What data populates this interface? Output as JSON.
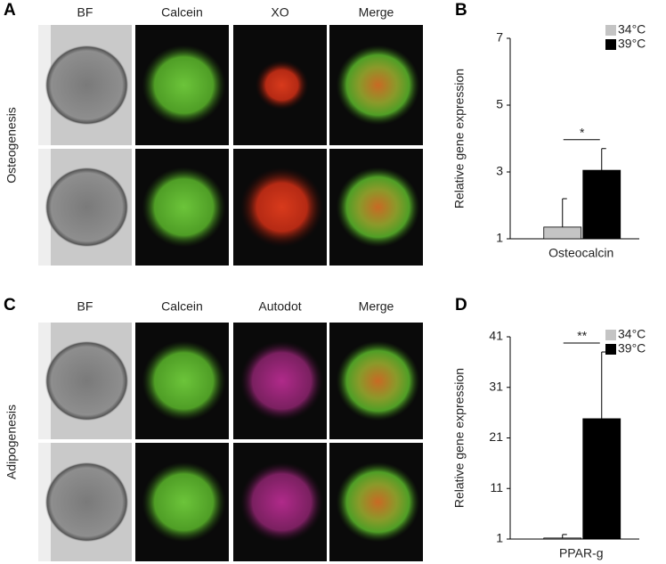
{
  "panels": [
    {
      "label": "A",
      "columns": [
        "BF",
        "Calcein",
        "XO",
        "Merge"
      ],
      "row_label": "Osteogenesis"
    },
    {
      "label": "C",
      "columns": [
        "BF",
        "Calcein",
        "Autodot",
        "Merge"
      ],
      "row_label": "Adipogenesis"
    }
  ],
  "chart_data": [
    {
      "type": "bar",
      "panel_label": "B",
      "y_label": "Relative gene expression",
      "categories": [
        "Osteocalcin"
      ],
      "significance": "*",
      "series": [
        {
          "name": "34°C",
          "color": "#c4c4c4",
          "values": [
            1.35
          ],
          "errors": [
            0.85
          ]
        },
        {
          "name": "39°C",
          "color": "#000000",
          "values": [
            3.05
          ],
          "errors": [
            0.65
          ]
        }
      ],
      "ylim": [
        1,
        7
      ],
      "yticks": [
        1,
        3,
        5,
        7
      ]
    },
    {
      "type": "bar",
      "panel_label": "D",
      "y_label": "Relative gene expression",
      "categories": [
        "PPAR-g"
      ],
      "significance": "**",
      "series": [
        {
          "name": "34°C",
          "color": "#c4c4c4",
          "values": [
            1.2
          ],
          "errors": [
            0.7
          ]
        },
        {
          "name": "39°C",
          "color": "#000000",
          "values": [
            24.8
          ],
          "errors": [
            13.2
          ]
        }
      ],
      "ylim": [
        1,
        41
      ],
      "yticks": [
        1,
        11,
        21,
        31,
        41
      ]
    }
  ]
}
